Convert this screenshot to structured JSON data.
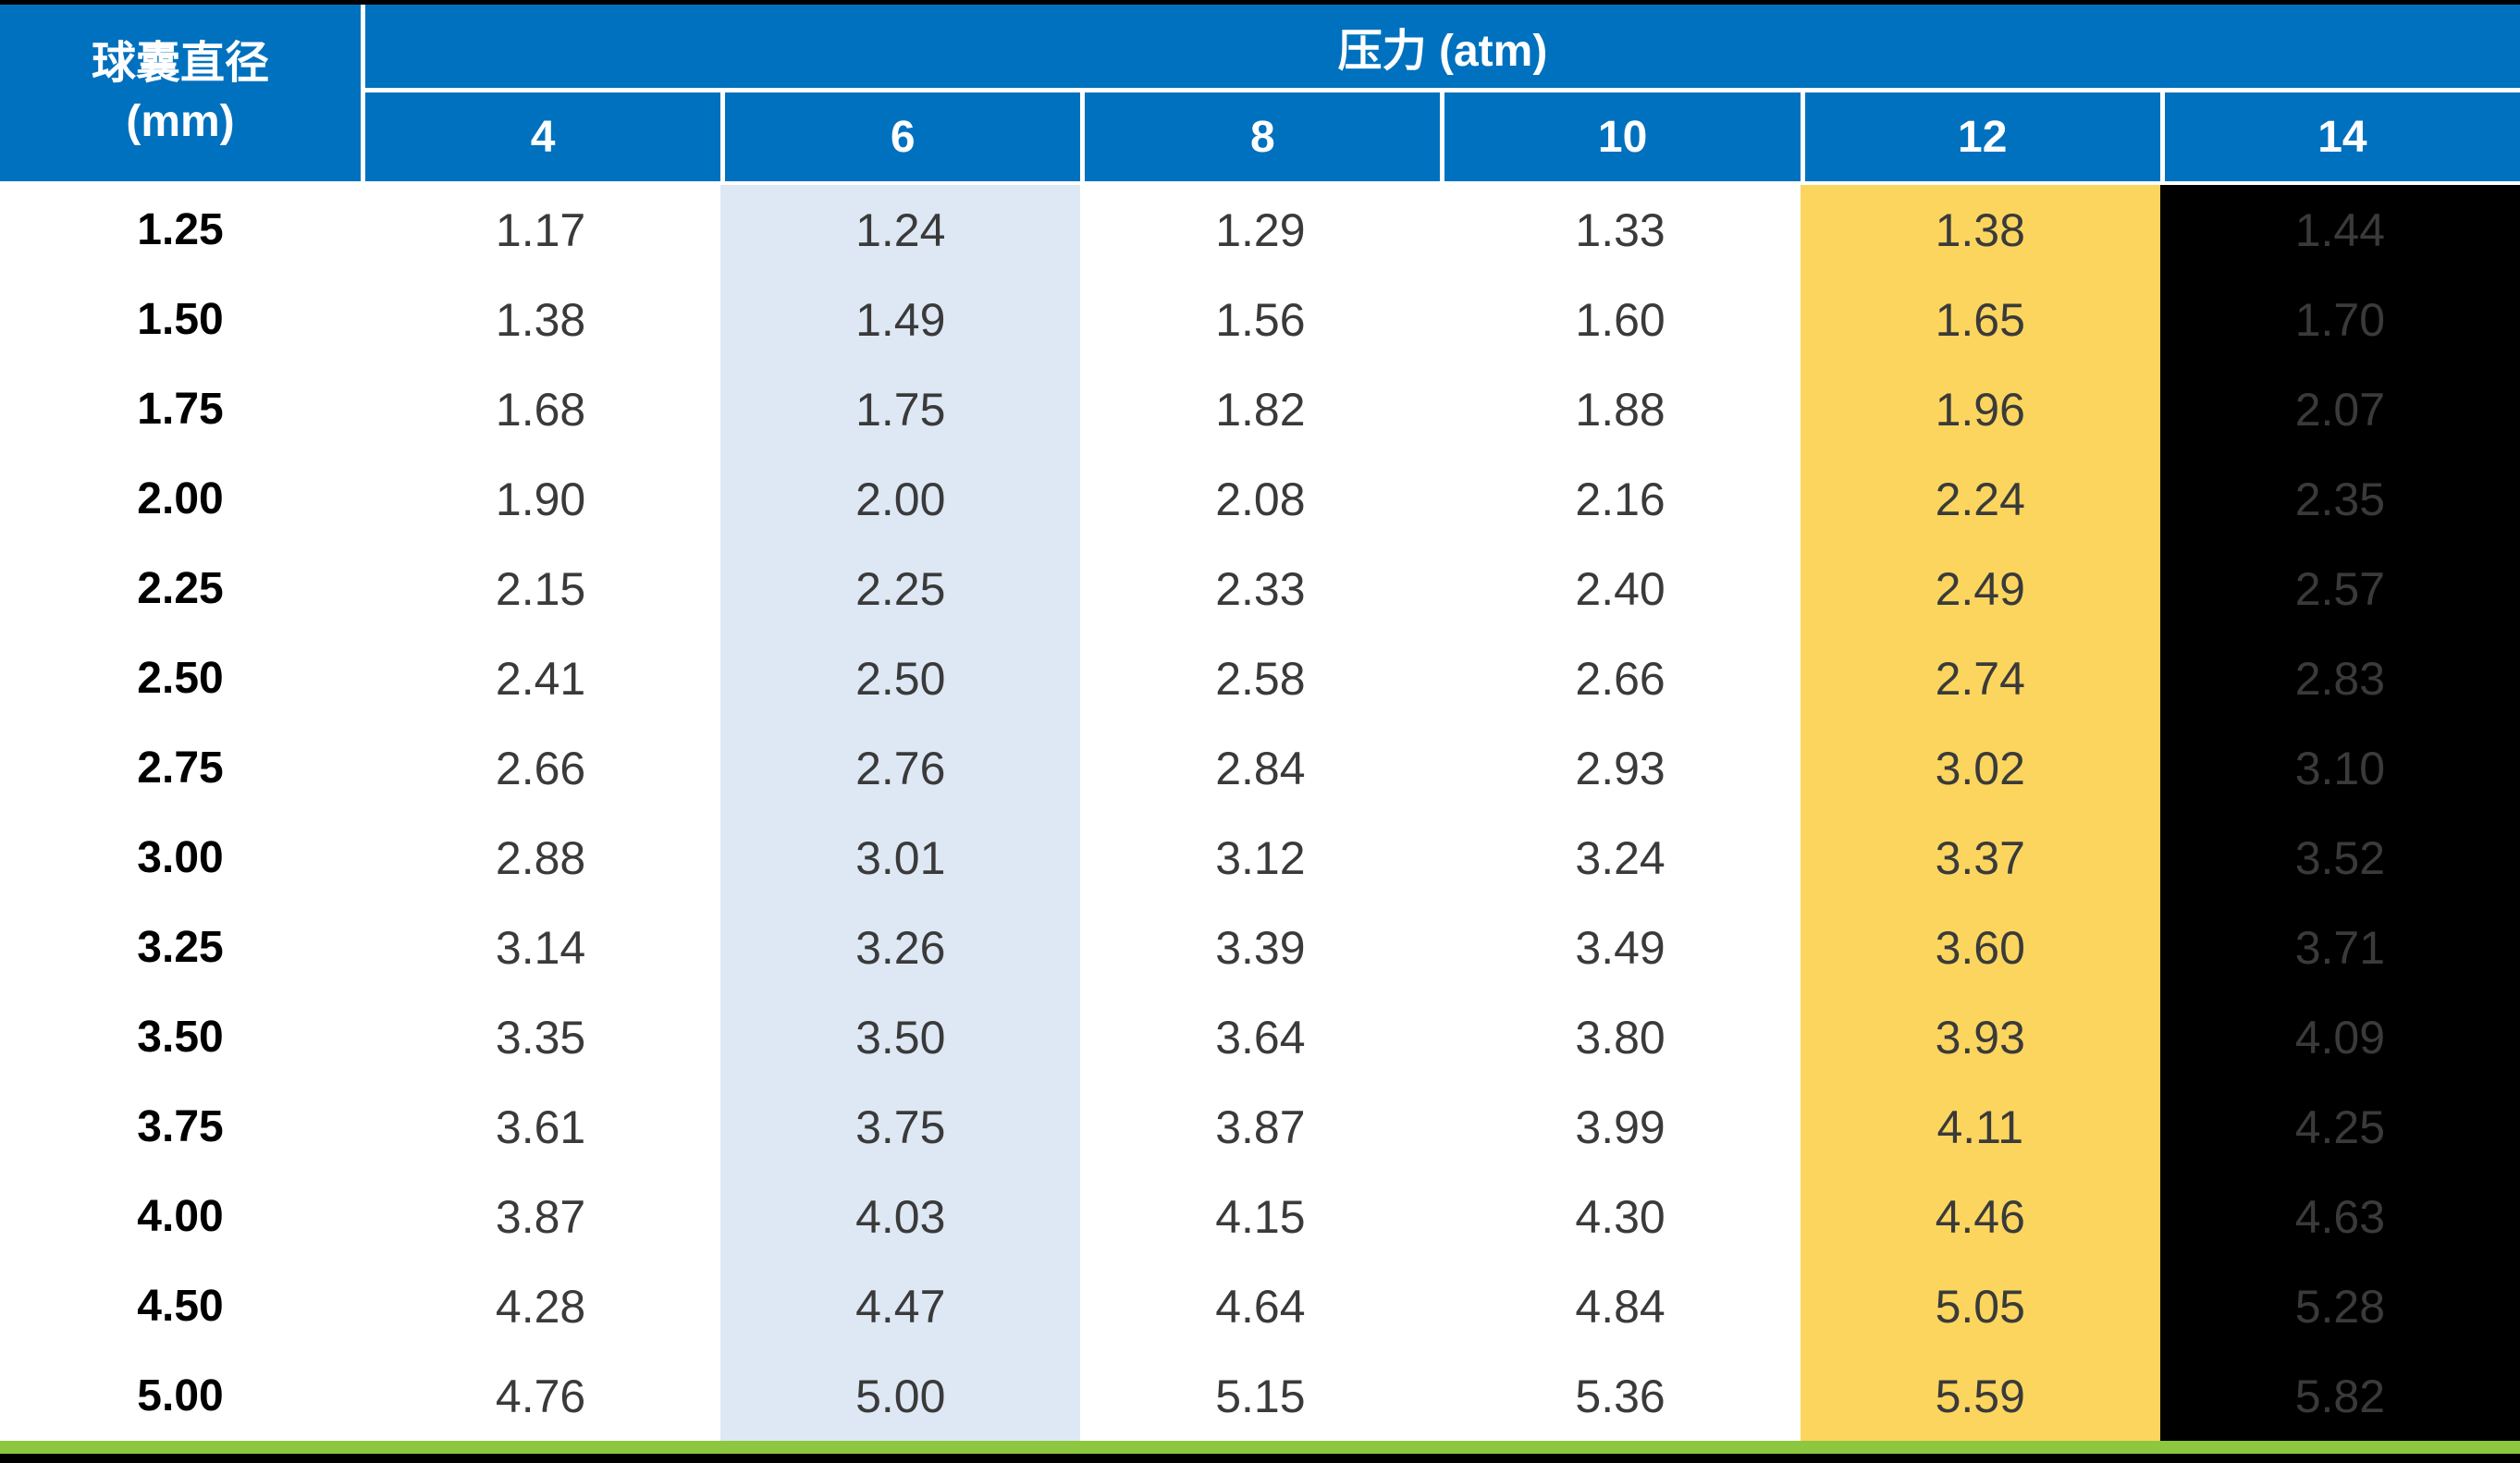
{
  "chart_data": {
    "type": "table",
    "row_header_title": "球囊直径",
    "row_header_unit": "(mm)",
    "column_group_title": "压力 (atm)",
    "columns": [
      "4",
      "6",
      "8",
      "10",
      "12",
      "14"
    ],
    "rows": [
      {
        "diameter": "1.25",
        "values": [
          "1.17",
          "1.24",
          "1.29",
          "1.33",
          "1.38",
          "1.44"
        ]
      },
      {
        "diameter": "1.50",
        "values": [
          "1.38",
          "1.49",
          "1.56",
          "1.60",
          "1.65",
          "1.70"
        ]
      },
      {
        "diameter": "1.75",
        "values": [
          "1.68",
          "1.75",
          "1.82",
          "1.88",
          "1.96",
          "2.07"
        ]
      },
      {
        "diameter": "2.00",
        "values": [
          "1.90",
          "2.00",
          "2.08",
          "2.16",
          "2.24",
          "2.35"
        ]
      },
      {
        "diameter": "2.25",
        "values": [
          "2.15",
          "2.25",
          "2.33",
          "2.40",
          "2.49",
          "2.57"
        ]
      },
      {
        "diameter": "2.50",
        "values": [
          "2.41",
          "2.50",
          "2.58",
          "2.66",
          "2.74",
          "2.83"
        ]
      },
      {
        "diameter": "2.75",
        "values": [
          "2.66",
          "2.76",
          "2.84",
          "2.93",
          "3.02",
          "3.10"
        ]
      },
      {
        "diameter": "3.00",
        "values": [
          "2.88",
          "3.01",
          "3.12",
          "3.24",
          "3.37",
          "3.52"
        ]
      },
      {
        "diameter": "3.25",
        "values": [
          "3.14",
          "3.26",
          "3.39",
          "3.49",
          "3.60",
          "3.71"
        ]
      },
      {
        "diameter": "3.50",
        "values": [
          "3.35",
          "3.50",
          "3.64",
          "3.80",
          "3.93",
          "4.09"
        ]
      },
      {
        "diameter": "3.75",
        "values": [
          "3.61",
          "3.75",
          "3.87",
          "3.99",
          "4.11",
          "4.25"
        ]
      },
      {
        "diameter": "4.00",
        "values": [
          "3.87",
          "4.03",
          "4.15",
          "4.30",
          "4.46",
          "4.63"
        ]
      },
      {
        "diameter": "4.50",
        "values": [
          "4.28",
          "4.47",
          "4.64",
          "4.84",
          "5.05",
          "5.28"
        ]
      },
      {
        "diameter": "5.00",
        "values": [
          "4.76",
          "5.00",
          "5.15",
          "5.36",
          "5.59",
          "5.82"
        ]
      }
    ]
  },
  "colors": {
    "header_blue": "#0071BE",
    "highlight_blue": "#DDE8F4",
    "highlight_yellow": "#FBD55E",
    "highlight_black": "#000000",
    "footer_green": "#8DC63F",
    "body_text": "#3A3A3A",
    "row_label_text": "#000000",
    "header_text": "#FFFFFF"
  }
}
